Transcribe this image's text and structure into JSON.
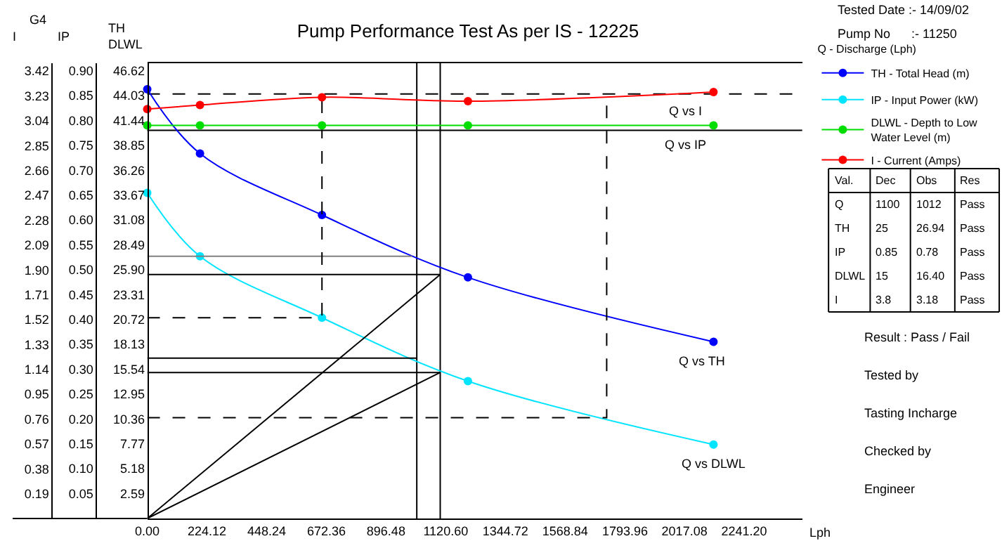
{
  "chart_data": {
    "type": "line",
    "title": "Pump Performance Test As per IS - 12225",
    "xlabel": "Lph",
    "ylabel": "TH\nDLWL",
    "y2label": "IP",
    "y3label": "I",
    "legend_title": "Q - Discharge (Lph)",
    "legend": "right",
    "grid": false,
    "xlim": [
      0,
      2459
    ],
    "xticks": [
      {
        "value": 0,
        "label": "0.00"
      },
      224.12,
      448.24,
      672.36,
      896.48,
      {
        "value": 1120.6,
        "label": "1120.60"
      },
      1344.72,
      1568.84,
      1793.96,
      2017.08,
      {
        "value": 2241.2,
        "label": "2241.20"
      }
    ],
    "ylim": [
      0,
      47.4
    ],
    "yticks": [
      2.59,
      5.18,
      7.77,
      10.36,
      12.95,
      15.54,
      18.13,
      20.72,
      23.31,
      {
        "value": 25.9,
        "label": "25.90"
      },
      28.49,
      31.08,
      33.67,
      36.26,
      38.85,
      41.44,
      44.03,
      46.62
    ],
    "y2lim": [
      0,
      0.915
    ],
    "y2ticks": [
      0.05,
      {
        "value": 0.1,
        "label": "0.10"
      },
      0.15,
      {
        "value": 0.2,
        "label": "0.20"
      },
      0.25,
      {
        "value": 0.3,
        "label": "0.30"
      },
      0.35,
      {
        "value": 0.4,
        "label": "0.40"
      },
      0.45,
      {
        "value": 0.5,
        "label": "0.50"
      },
      0.55,
      {
        "value": 0.6,
        "label": "0.60"
      },
      0.65,
      {
        "value": 0.7,
        "label": "0.70"
      },
      0.75,
      {
        "value": 0.8,
        "label": "0.80"
      },
      0.85,
      {
        "value": 0.9,
        "label": "0.90"
      }
    ],
    "y3lim": [
      0,
      3.48
    ],
    "y3ticks": [
      0.19,
      0.38,
      0.57,
      0.76,
      0.95,
      1.14,
      1.33,
      1.52,
      1.71,
      {
        "value": 1.9,
        "label": "1.90"
      },
      2.09,
      2.28,
      2.47,
      2.66,
      2.85,
      3.04,
      3.23,
      3.42
    ],
    "series": [
      {
        "name": "TH - Total Head (m)",
        "color": "#0000ff",
        "marker": "circle",
        "x": [
          0,
          198,
          656,
          1204,
          2126
        ],
        "values": [
          44.7,
          38.0,
          31.6,
          25.1,
          18.4
        ]
      },
      {
        "name": "IP - Input Power (kW)",
        "color": "#00e5ff",
        "marker": "circle",
        "x": [
          0,
          198,
          656,
          1204,
          2126
        ],
        "values": [
          33.9,
          27.3,
          20.9,
          14.3,
          7.7
        ]
      },
      {
        "name": "DLWL - Depth to Low Water Level (m)",
        "color": "#00dd00",
        "marker": "circle",
        "axis": "y2",
        "x": [
          0,
          198,
          656,
          1204,
          2126
        ],
        "values": [
          0.79,
          0.79,
          0.79,
          0.79,
          0.79
        ]
      },
      {
        "name": "I - Current (Amps)",
        "color": "#ff0000",
        "marker": "circle",
        "axis": "y3",
        "x": [
          0,
          198,
          656,
          1204,
          2126
        ],
        "values": [
          3.13,
          3.16,
          3.22,
          3.19,
          3.26
        ]
      },
      {
        "type": "line",
        "color": "#000000",
        "marker": "none",
        "x": [
          0,
          1100
        ],
        "values": [
          0,
          25.4
        ]
      },
      {
        "type": "line",
        "color": "#000000",
        "marker": "none",
        "x": [
          0,
          1100
        ],
        "values": [
          0,
          15.2
        ]
      },
      {
        "type": "line",
        "color": "#000000",
        "marker": "none",
        "x": [
          0,
          1100
        ],
        "values": [
          25.4,
          25.4
        ]
      },
      {
        "type": "line",
        "color": "#000000",
        "marker": "none",
        "x": [
          0,
          1100
        ],
        "values": [
          15.2,
          15.2
        ]
      },
      {
        "type": "line",
        "color": "#000000",
        "marker": "none",
        "x": [
          0,
          1012
        ],
        "values": [
          16.7,
          16.7
        ]
      },
      {
        "type": "line",
        "color": "#808080",
        "marker": "none",
        "x": [
          0,
          995
        ],
        "values": [
          27.3,
          27.3
        ]
      },
      {
        "type": "line",
        "color": "#000000",
        "marker": "none",
        "line_style": "dashed",
        "x": [
          0,
          656,
          656
        ],
        "values": [
          20.9,
          20.9,
          44.2
        ]
      },
      {
        "type": "line",
        "color": "#000000",
        "marker": "none",
        "line_style": "dashed",
        "x": [
          0,
          1725,
          1725
        ],
        "values": [
          10.5,
          10.5,
          44.2
        ]
      }
    ],
    "ref_lines": [
      {
        "axis": "x",
        "value": 1012,
        "color": "#000000"
      },
      {
        "axis": "x",
        "value": 1100,
        "color": "#000000"
      },
      {
        "axis": "y",
        "value": 44.2,
        "color": "#000000",
        "line_style": "dashed"
      },
      {
        "axis": "y2",
        "value": 0.78,
        "color": "#000000"
      }
    ],
    "annotations": [
      "G4",
      "Tested Date :- 14/09/02",
      "Pump No      :- 11250",
      "Val.",
      "Dec",
      "Obs",
      "Res",
      "Q",
      "1100",
      "1012",
      "Pass",
      "TH",
      "25",
      "26.94",
      "Pass",
      "IP",
      "0.85",
      "0.78",
      "Pass",
      "DLWL",
      "15",
      "16.40",
      "Pass",
      "I",
      "3.8",
      "3.18",
      "Pass",
      "Result : Pass / Fail",
      "Tested by",
      "Tasting Incharge",
      "Checked by",
      "Engineer",
      "Q vs I",
      "Q vs IP",
      "Q vs TH",
      "Q vs DLWL"
    ]
  }
}
